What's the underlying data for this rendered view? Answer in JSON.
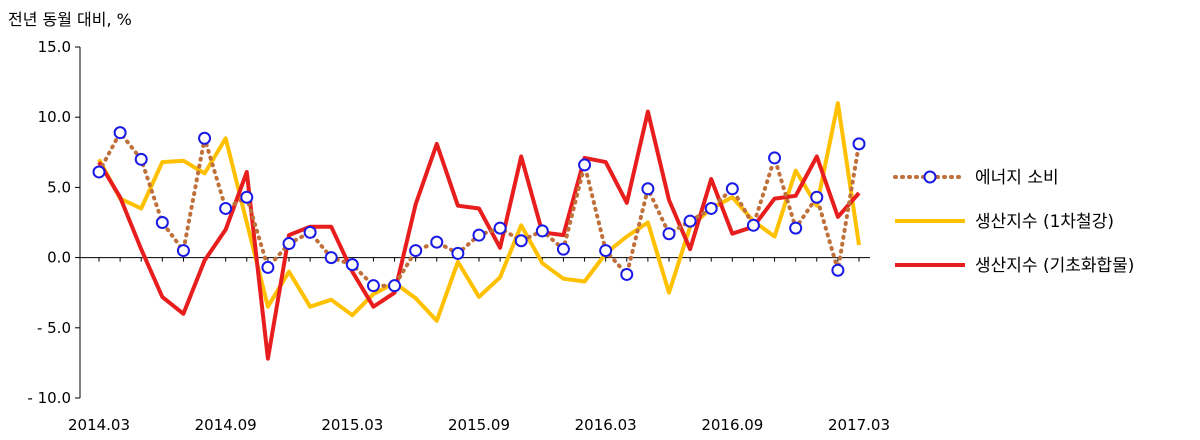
{
  "chart_data": {
    "type": "line",
    "unit_label": "전년 동월 대비, %",
    "ylim": [
      -10,
      15
    ],
    "y_ticks": [
      15.0,
      10.0,
      5.0,
      0.0,
      -5.0,
      -10.0
    ],
    "y_tick_labels": [
      "15.0",
      "10.0",
      "5.0",
      "0.0",
      "- 5.0",
      "- 10.0"
    ],
    "x": [
      "2014.03",
      "2014.04",
      "2014.05",
      "2014.06",
      "2014.07",
      "2014.08",
      "2014.09",
      "2014.10",
      "2014.11",
      "2014.12",
      "2015.01",
      "2015.02",
      "2015.03",
      "2015.04",
      "2015.05",
      "2015.06",
      "2015.07",
      "2015.08",
      "2015.09",
      "2015.10",
      "2015.11",
      "2015.12",
      "2016.01",
      "2016.02",
      "2016.03",
      "2016.04",
      "2016.05",
      "2016.06",
      "2016.07",
      "2016.08",
      "2016.09",
      "2016.10",
      "2016.11",
      "2016.12",
      "2017.01",
      "2017.02",
      "2017.03"
    ],
    "x_tick_labels": [
      "2014.03",
      "2014.09",
      "2015.03",
      "2015.09",
      "2016.03",
      "2016.09",
      "2017.03"
    ],
    "x_tick_index": [
      0,
      6,
      12,
      18,
      24,
      30,
      36
    ],
    "legend_position": "right",
    "series": [
      {
        "name": "에너지 소비",
        "color": "#C0703A",
        "marker_color": "#1A1AE6",
        "style": "dotted-with-circles",
        "values": [
          6.1,
          8.9,
          7.0,
          2.5,
          0.5,
          8.5,
          3.5,
          4.3,
          -0.7,
          1.0,
          1.8,
          0.0,
          -0.5,
          -2.0,
          -2.0,
          0.5,
          1.1,
          0.3,
          1.6,
          2.1,
          1.2,
          1.9,
          0.6,
          6.6,
          0.5,
          -1.2,
          4.9,
          1.7,
          2.6,
          3.5,
          4.9,
          2.3,
          7.1,
          2.1,
          4.3,
          -0.9,
          8.1
        ]
      },
      {
        "name": "생산지수 (1차철강)",
        "color": "#FFC000",
        "style": "solid",
        "values": [
          7.0,
          4.2,
          3.5,
          6.8,
          6.9,
          6.0,
          8.5,
          2.5,
          -3.5,
          -1.0,
          -3.5,
          -3.0,
          -4.1,
          -2.6,
          -1.8,
          -2.9,
          -4.5,
          -0.3,
          -2.8,
          -1.4,
          2.3,
          -0.4,
          -1.5,
          -1.7,
          0.3,
          1.5,
          2.5,
          -2.5,
          2.2,
          3.5,
          4.3,
          2.6,
          1.5,
          6.2,
          3.7,
          11.0,
          0.9
        ]
      },
      {
        "name": "생산지수 (기초화합물)",
        "color": "#E81E1E",
        "style": "solid",
        "values": [
          6.8,
          4.3,
          0.6,
          -2.8,
          -4.0,
          -0.2,
          2.0,
          6.1,
          -7.2,
          1.6,
          2.2,
          2.2,
          -1.0,
          -3.5,
          -2.5,
          3.8,
          8.1,
          3.7,
          3.5,
          0.7,
          7.2,
          1.8,
          1.6,
          7.1,
          6.8,
          3.9,
          10.4,
          4.1,
          0.6,
          5.6,
          1.7,
          2.2,
          4.2,
          4.4,
          7.2,
          2.9,
          4.6
        ]
      }
    ]
  }
}
